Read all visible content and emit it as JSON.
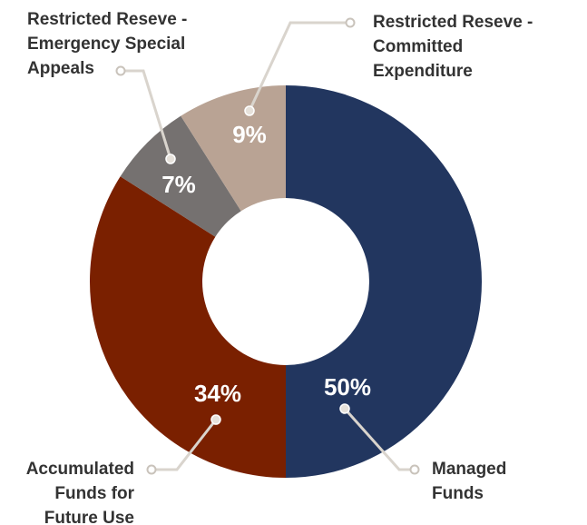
{
  "chart_data": {
    "type": "donut",
    "categories": [
      "Managed\nFunds",
      "Accumulated\nFunds for\nFuture Use",
      "Restricted Reseve -\nEmergency Special\nAppeals",
      "Restricted Reseve -\nCommitted\nExpenditure"
    ],
    "values": [
      50,
      34,
      7,
      9
    ],
    "value_labels": [
      "50%",
      "34%",
      "7%",
      "9%"
    ],
    "colors": [
      "#22365f",
      "#7a2000",
      "#757170",
      "#b9a394"
    ]
  }
}
